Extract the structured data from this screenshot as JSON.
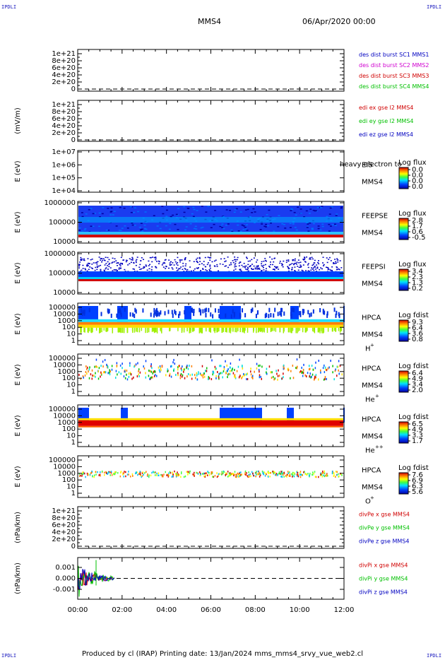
{
  "corner_labels": {
    "top_left": "IPDLI",
    "top_right": "IPDLI",
    "bottom_left": "IPDLI",
    "bottom_right": "IPDLI"
  },
  "header": {
    "spacecraft": "MMS4",
    "date": "06/Apr/2020 00:00"
  },
  "footer": {
    "text": "Produced by cl (IRAP)   Printing date: 13/Jan/2024   mms_mms4_srvy_vue_web2.cl"
  },
  "colors": {
    "red": "#d00000",
    "green": "#00c000",
    "blue": "#0000c0",
    "magenta": "#d000d0"
  },
  "chart_data": [
    {
      "type": "line",
      "panel": "des-dist-burst",
      "ylabel": "",
      "yticks": [
        "1e+21",
        "8e+20",
        "6e+20",
        "4e+20",
        "2e+20",
        "0"
      ],
      "legend": [
        {
          "text": "des dist burst SC1 MMS1",
          "color": "#0000c0"
        },
        {
          "text": "des dist burst SC2 MMS2",
          "color": "#d000d0"
        },
        {
          "text": "des dist burst SC3 MMS3",
          "color": "#d00000"
        },
        {
          "text": "des dist burst SC4 MMS4",
          "color": "#00c000"
        }
      ]
    },
    {
      "type": "line",
      "panel": "edi-e",
      "ylabel": "(mV/m)",
      "yticks": [
        "1e+21",
        "8e+20",
        "6e+20",
        "4e+20",
        "2e+20",
        "0"
      ],
      "legend": [
        {
          "text": "edi ex gse l2 MMS4",
          "color": "#d00000"
        },
        {
          "text": "edi ey gse l2 MMS4",
          "color": "#00c000"
        },
        {
          "text": "edi ez gse l2 MMS4",
          "color": "#0000c0"
        }
      ]
    },
    {
      "type": "heatmap",
      "panel": "eis",
      "ylabel": "E (eV)",
      "yticks": [
        "1e+07",
        "1e+06",
        "1e+05",
        "1e+04"
      ],
      "instrument": "EIS",
      "sc": "MMS4",
      "species": "",
      "overlay_text": "heavy electron to",
      "cbar_title": "Log flux",
      "cbar_ticks": [
        "0.0",
        "0.0",
        "0.0",
        "0.0"
      ],
      "fill": "none"
    },
    {
      "type": "heatmap",
      "panel": "feeps-e",
      "ylabel": "E (eV)",
      "yticks": [
        "1000000",
        "100000",
        "10000"
      ],
      "instrument": "FEEPSE",
      "sc": "MMS4",
      "species": "",
      "cbar_title": "Log flux",
      "cbar_ticks": [
        "2.8",
        "1.7",
        "0.6",
        "-0.5"
      ],
      "fill": "feepse"
    },
    {
      "type": "heatmap",
      "panel": "feeps-i",
      "ylabel": "E (eV)",
      "yticks": [
        "1000000",
        "100000",
        "10000"
      ],
      "instrument": "FEEPSI",
      "sc": "MMS4",
      "species": "",
      "cbar_title": "Log flux",
      "cbar_ticks": [
        "3.4",
        "2.3",
        "1.3",
        "0.2"
      ],
      "fill": "feepsi"
    },
    {
      "type": "heatmap",
      "panel": "hpca-h",
      "ylabel": "E (eV)",
      "yticks": [
        "100000",
        "10000",
        "1000",
        "100",
        "10",
        "1"
      ],
      "instrument": "HPCA",
      "sc": "MMS4",
      "species": "H",
      "species_sup": "+",
      "cbar_title": "Log fdist",
      "cbar_ticks": [
        "9.3",
        "6.4",
        "3.6",
        "0.8"
      ],
      "fill": "hpca_h"
    },
    {
      "type": "heatmap",
      "panel": "hpca-he",
      "ylabel": "E (eV)",
      "yticks": [
        "100000",
        "10000",
        "1000",
        "100",
        "10",
        "1"
      ],
      "instrument": "HPCA",
      "sc": "MMS4",
      "species": "He",
      "species_sup": "+",
      "cbar_title": "Log fdist",
      "cbar_ticks": [
        "6.4",
        "4.9",
        "3.4",
        "2.0"
      ],
      "fill": "hpca_he"
    },
    {
      "type": "heatmap",
      "panel": "hpca-he2",
      "ylabel": "E (eV)",
      "yticks": [
        "100000",
        "10000",
        "1000",
        "100",
        "10",
        "1"
      ],
      "instrument": "HPCA",
      "sc": "MMS4",
      "species": "He",
      "species_sup": "++",
      "cbar_title": "Log fdist",
      "cbar_ticks": [
        "6.5",
        "4.9",
        "3.3",
        "1.7"
      ],
      "fill": "hpca_he2"
    },
    {
      "type": "heatmap",
      "panel": "hpca-o",
      "ylabel": "E (eV)",
      "yticks": [
        "100000",
        "10000",
        "1000",
        "100",
        "10",
        "1"
      ],
      "instrument": "HPCA",
      "sc": "MMS4",
      "species": "O",
      "species_sup": "+",
      "cbar_title": "Log fdist",
      "cbar_ticks": [
        "7.6",
        "6.9",
        "6.3",
        "5.6"
      ],
      "fill": "hpca_o"
    },
    {
      "type": "line",
      "panel": "divpe",
      "ylabel": "(nPa/km)",
      "yticks": [
        "1e+21",
        "8e+20",
        "6e+20",
        "4e+20",
        "2e+20",
        "0"
      ],
      "legend": [
        {
          "text": "divPe x gse MMS4",
          "color": "#d00000"
        },
        {
          "text": "divPe y gse MMS4",
          "color": "#00c000"
        },
        {
          "text": "divPe z gse MMS4",
          "color": "#0000c0"
        }
      ]
    },
    {
      "type": "line",
      "panel": "divpi",
      "ylabel": "(nPa/km)",
      "yticks": [
        "0.001",
        "0.000",
        "-0.001"
      ],
      "ylim": [
        -0.0015,
        0.0015
      ],
      "legend": [
        {
          "text": "divPi x gse MMS4",
          "color": "#d00000"
        },
        {
          "text": "divPi y gse MMS4",
          "color": "#00c000"
        },
        {
          "text": "divPi z gse MMS4",
          "color": "#0000c0"
        }
      ]
    }
  ],
  "x_axis": {
    "ticks": [
      "00:00",
      "02:00",
      "04:00",
      "06:00",
      "08:00",
      "10:00",
      "12:00"
    ],
    "range_hours": [
      0,
      12
    ]
  }
}
